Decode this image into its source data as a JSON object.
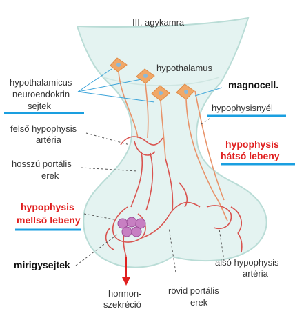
{
  "colors": {
    "tissue_fill": "#e4f3f1",
    "tissue_stroke": "#b9dcd6",
    "neuron": "#f0a868",
    "vessel": "#d9534f",
    "blue_underline": "#1a9fe0",
    "red_label": "#e02020",
    "gland_cell": "#c77fc2"
  },
  "labels": {
    "third_ventricle": "III. agykamra",
    "hypothalamus": "hypothalamus",
    "neuroendocrine_cells": [
      "hypothalamicus",
      "neuroendokrin",
      "sejtek"
    ],
    "magnocell": "magnocell.",
    "pituitary_stalk": "hypophysisnyél",
    "superior_artery": [
      "felső hypophysis",
      "artéria"
    ],
    "long_portal_vessels": [
      "hosszú portális",
      "erek"
    ],
    "posterior_lobe": [
      "hypophysis",
      "hátsó lebeny"
    ],
    "anterior_lobe": [
      "hypophysis",
      "mellső lebeny"
    ],
    "gland_cells": "mirigysejtek",
    "hormone_secretion": [
      "hormon-",
      "szekréció"
    ],
    "short_portal_vessels": [
      "rövid portális",
      "erek"
    ],
    "inferior_artery": [
      "alsó hypophysis",
      "artéria"
    ]
  },
  "icons": {
    "neuron": "neuron-cell-icon",
    "arrow": "hormone-arrow-icon"
  }
}
